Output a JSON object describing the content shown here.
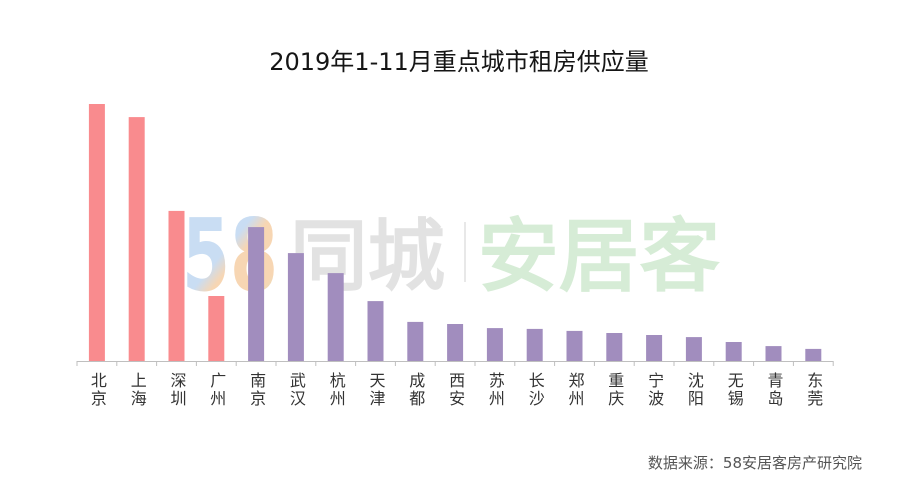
{
  "chart_data": {
    "type": "bar",
    "title": "2019年1-11月重点城市租房供应量",
    "xlabel": "",
    "ylabel": "",
    "categories": [
      "北京",
      "上海",
      "深圳",
      "广州",
      "南京",
      "武汉",
      "杭州",
      "天津",
      "成都",
      "西安",
      "苏州",
      "长沙",
      "郑州",
      "重庆",
      "宁波",
      "沈阳",
      "无锡",
      "青岛",
      "东莞"
    ],
    "values": [
      100,
      94.9,
      58.4,
      25.3,
      52.1,
      42.0,
      34.2,
      23.3,
      15.2,
      14.4,
      12.8,
      12.5,
      11.7,
      10.9,
      10.1,
      9.3,
      7.4,
      5.8,
      4.7
    ],
    "ylim": [
      0,
      100
    ],
    "grid": false,
    "legend": "none",
    "colors": {
      "highlight": "#F98B8E",
      "default": "#A18DBE"
    },
    "bar_colors": [
      "#F98B8E",
      "#F98B8E",
      "#F98B8E",
      "#F98B8E",
      "#A18DBE",
      "#A18DBE",
      "#A18DBE",
      "#A18DBE",
      "#A18DBE",
      "#A18DBE",
      "#A18DBE",
      "#A18DBE",
      "#A18DBE",
      "#A18DBE",
      "#A18DBE",
      "#A18DBE",
      "#A18DBE",
      "#A18DBE",
      "#A18DBE"
    ]
  },
  "source": "数据来源：58安居客房产研究院",
  "watermark": {
    "logo_number": "58",
    "logo_name": "同城",
    "brand": "安居客",
    "colors": {
      "number_blue": "#C9DDF3",
      "number_orange": "#F7D6B3",
      "number_green": "#D2E9C8",
      "name_gray": "#E2E2E2",
      "brand_green": "#D6ECD6"
    }
  }
}
